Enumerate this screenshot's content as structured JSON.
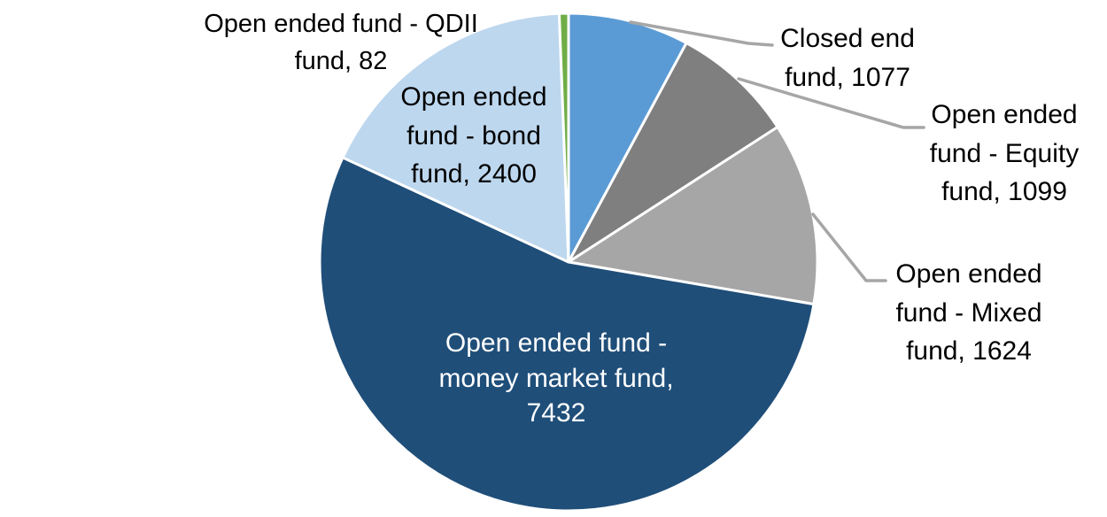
{
  "chart_data": {
    "type": "pie",
    "title": "",
    "total": 13714,
    "direction": "clockwise",
    "start_angle_deg": 0,
    "legend": "none",
    "labels_style": "category name + value, outside for small slices, inside for largest slice",
    "separator_color": "#ffffff",
    "leader_line_color": "#a6a6a6",
    "background_color": "#ffffff",
    "slices": [
      {
        "name": "Closed end fund",
        "value": 1077,
        "color": "#5b9bd5",
        "label_text": "Closed end\nfund, 1077",
        "label_color": "#000000",
        "label_placement": "outside-right-leader"
      },
      {
        "name": "Open ended fund - Equity fund",
        "value": 1099,
        "color": "#7f7f7f",
        "label_text": "Open ended\nfund - Equity\nfund, 1099",
        "label_color": "#000000",
        "label_placement": "outside-right-leader"
      },
      {
        "name": "Open ended fund - Mixed fund",
        "value": 1624,
        "color": "#a6a6a6",
        "label_text": "Open ended\nfund - Mixed\nfund, 1624",
        "label_color": "#000000",
        "label_placement": "outside-right-leader"
      },
      {
        "name": "Open ended fund - money market fund",
        "value": 7432,
        "color": "#1f4e79",
        "label_text": "Open ended fund -\nmoney market fund,\n7432",
        "label_color": "#ffffff",
        "label_placement": "inside"
      },
      {
        "name": "Open ended fund - bond fund",
        "value": 2400,
        "color": "#bdd7ee",
        "label_text": "Open ended\nfund - bond\nfund, 2400",
        "label_color": "#000000",
        "label_placement": "inside"
      },
      {
        "name": "Open ended fund - QDII fund",
        "value": 82,
        "color": "#70ad47",
        "label_text": "Open ended fund - QDII\nfund, 82",
        "label_color": "#000000",
        "label_placement": "outside-top-left"
      }
    ]
  }
}
